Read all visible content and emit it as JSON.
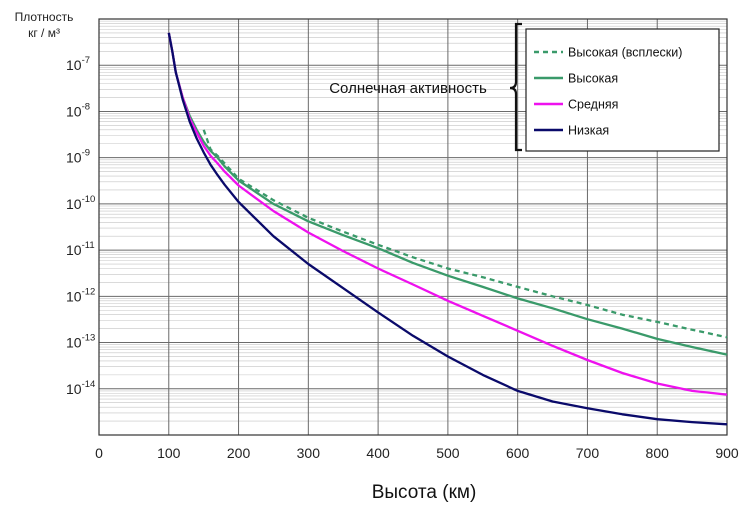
{
  "chart_data": {
    "type": "line",
    "xlabel": "Высота (км)",
    "ylabel": [
      "Плотность",
      "кг / м³"
    ],
    "xlim": [
      0,
      900
    ],
    "x_ticks": [
      0,
      100,
      200,
      300,
      400,
      500,
      600,
      700,
      800,
      900
    ],
    "y_scale": "log",
    "ylim": [
      1e-15,
      1e-06
    ],
    "y_ticks": [
      {
        "value": 1e-07,
        "base": "10",
        "exp": "-7"
      },
      {
        "value": 1e-08,
        "base": "10",
        "exp": "-8"
      },
      {
        "value": 1e-09,
        "base": "10",
        "exp": "-9"
      },
      {
        "value": 1e-10,
        "base": "10",
        "exp": "-10"
      },
      {
        "value": 1e-11,
        "base": "10",
        "exp": "-11"
      },
      {
        "value": 1e-12,
        "base": "10",
        "exp": "-12"
      },
      {
        "value": 1e-13,
        "base": "10",
        "exp": "-13"
      },
      {
        "value": 1e-14,
        "base": "10",
        "exp": "-14"
      }
    ],
    "grid": true,
    "annotation": "Солнечная активность",
    "legend_position": "top-right",
    "series": [
      {
        "name": "Высокая (всплески)",
        "color": "#3a9a6a",
        "dash": true,
        "x": [
          150,
          160,
          170,
          180,
          200,
          250,
          300,
          350,
          400,
          450,
          500,
          550,
          600,
          650,
          700,
          750,
          800,
          850,
          900
        ],
        "y": [
          4e-09,
          1.5e-09,
          1.1e-09,
          7.5e-10,
          3.5e-10,
          1.2e-10,
          5e-11,
          2.5e-11,
          1.3e-11,
          7e-12,
          4e-12,
          2.6e-12,
          1.6e-12,
          1e-12,
          6.5e-13,
          4e-13,
          2.8e-13,
          1.9e-13,
          1.3e-13
        ]
      },
      {
        "name": "Высокая",
        "color": "#3a9a6a",
        "dash": false,
        "x": [
          100,
          105,
          110,
          120,
          130,
          140,
          150,
          160,
          170,
          180,
          200,
          250,
          300,
          350,
          400,
          450,
          500,
          550,
          600,
          650,
          700,
          750,
          800,
          850,
          900
        ],
        "y": [
          5e-07,
          2e-07,
          7e-08,
          2e-08,
          8e-09,
          4e-09,
          2.2e-09,
          1.4e-09,
          1e-09,
          6.5e-10,
          3.2e-10,
          1e-10,
          4.2e-11,
          2.1e-11,
          1.1e-11,
          5.3e-12,
          2.8e-12,
          1.6e-12,
          9e-13,
          5.5e-13,
          3.2e-13,
          2e-13,
          1.2e-13,
          8e-14,
          5.5e-14
        ]
      },
      {
        "name": "Средняя",
        "color": "#ee11ee",
        "dash": false,
        "x": [
          100,
          105,
          110,
          120,
          130,
          140,
          150,
          160,
          170,
          180,
          200,
          250,
          300,
          350,
          400,
          450,
          500,
          550,
          600,
          650,
          700,
          750,
          800,
          850,
          900
        ],
        "y": [
          5e-07,
          2e-07,
          7e-08,
          2e-08,
          7e-09,
          3.5e-09,
          1.8e-09,
          1.1e-09,
          7.5e-10,
          5e-10,
          2.5e-10,
          7e-11,
          2.4e-11,
          9.5e-12,
          4e-12,
          1.8e-12,
          8e-13,
          3.8e-13,
          1.8e-13,
          8.5e-14,
          4.2e-14,
          2.2e-14,
          1.3e-14,
          9e-15,
          7.5e-15
        ]
      },
      {
        "name": "Низкая",
        "color": "#0a0a6a",
        "dash": false,
        "x": [
          100,
          105,
          110,
          120,
          130,
          140,
          150,
          160,
          170,
          180,
          200,
          250,
          300,
          350,
          400,
          450,
          500,
          550,
          600,
          650,
          700,
          750,
          800,
          850,
          900
        ],
        "y": [
          5e-07,
          2e-07,
          7e-08,
          1.8e-08,
          6e-09,
          2.6e-09,
          1.3e-09,
          7e-10,
          4.2e-10,
          2.6e-10,
          1.1e-10,
          2e-11,
          5e-12,
          1.5e-12,
          4.5e-13,
          1.4e-13,
          5e-14,
          2e-14,
          9e-15,
          5.3e-15,
          3.8e-15,
          2.8e-15,
          2.2e-15,
          1.9e-15,
          1.7e-15
        ]
      }
    ]
  }
}
